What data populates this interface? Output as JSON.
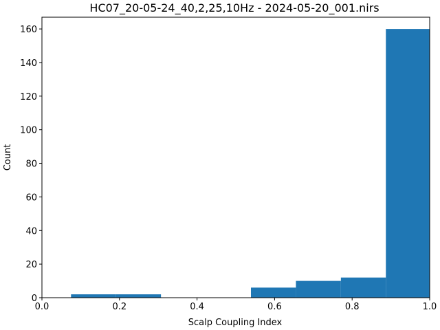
{
  "chart_data": {
    "type": "bar",
    "title": "HC07_20-05-24_40,2,25,10Hz - 2024-05-20_001.nirs",
    "xlabel": "Scalp Coupling Index",
    "ylabel": "Count",
    "xlim": [
      0.0,
      1.0
    ],
    "ylim": [
      0,
      167
    ],
    "x_ticks": [
      0.0,
      0.2,
      0.4,
      0.6,
      0.8,
      1.0
    ],
    "x_tick_labels": [
      "0.0",
      "0.2",
      "0.4",
      "0.6",
      "0.8",
      "1.0"
    ],
    "y_ticks": [
      0,
      20,
      40,
      60,
      80,
      100,
      120,
      140,
      160
    ],
    "y_tick_labels": [
      "0",
      "20",
      "40",
      "60",
      "80",
      "100",
      "120",
      "140",
      "160"
    ],
    "bins": [
      {
        "x0": 0.075,
        "x1": 0.191,
        "count": 2
      },
      {
        "x0": 0.191,
        "x1": 0.307,
        "count": 2
      },
      {
        "x0": 0.307,
        "x1": 0.423,
        "count": 0
      },
      {
        "x0": 0.423,
        "x1": 0.539,
        "count": 0
      },
      {
        "x0": 0.539,
        "x1": 0.655,
        "count": 6
      },
      {
        "x0": 0.655,
        "x1": 0.771,
        "count": 10
      },
      {
        "x0": 0.771,
        "x1": 0.887,
        "count": 12
      },
      {
        "x0": 0.887,
        "x1": 1.003,
        "count": 160
      }
    ],
    "grid": false,
    "colors": {
      "bar": "#1f77b4"
    }
  }
}
